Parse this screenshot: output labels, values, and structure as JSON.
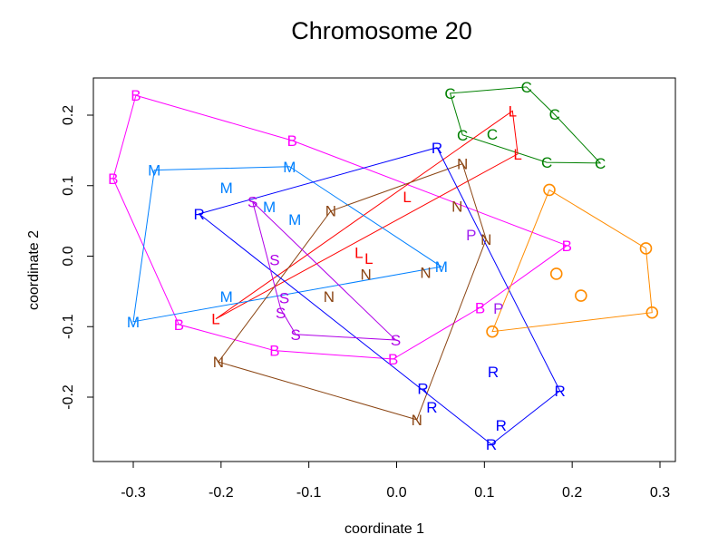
{
  "chart_data": {
    "type": "scatter",
    "title": "Chromosome 20",
    "xlabel": "coordinate 1",
    "ylabel": "coordinate 2",
    "xlim": [
      -0.345,
      0.32
    ],
    "ylim": [
      -0.29,
      0.255
    ],
    "xticks": [
      -0.3,
      -0.2,
      -0.1,
      0.0,
      0.1,
      0.2,
      0.3
    ],
    "xtick_labels": [
      "-0.3",
      "-0.2",
      "-0.1",
      "0.0",
      "0.1",
      "0.2",
      "0.3"
    ],
    "yticks": [
      -0.2,
      -0.1,
      0.0,
      0.1,
      0.2
    ],
    "ytick_labels": [
      "-0.2",
      "-0.1",
      "0.0",
      "0.1",
      "0.2"
    ],
    "grid": false,
    "point_marker": "letter",
    "hulls": true,
    "groups": [
      {
        "label": "B",
        "color": "#FF00FF",
        "hull": true,
        "points": [
          [
            -0.297,
            0.228
          ],
          [
            -0.119,
            0.164
          ],
          [
            -0.323,
            0.11
          ],
          [
            0.194,
            0.015
          ],
          [
            0.095,
            -0.073
          ],
          [
            -0.248,
            -0.097
          ],
          [
            -0.139,
            -0.134
          ],
          [
            -0.004,
            -0.146
          ]
        ],
        "hull_order": [
          0,
          1,
          3,
          4,
          7,
          6,
          5,
          2
        ]
      },
      {
        "label": "C",
        "color": "#008000",
        "hull": true,
        "points": [
          [
            0.061,
            0.231
          ],
          [
            0.148,
            0.24
          ],
          [
            0.18,
            0.201
          ],
          [
            0.232,
            0.132
          ],
          [
            0.171,
            0.133
          ],
          [
            0.075,
            0.172
          ],
          [
            0.109,
            0.173
          ]
        ],
        "hull_order": [
          0,
          1,
          2,
          3,
          4,
          5
        ]
      },
      {
        "label": "L",
        "color": "#FF0000",
        "hull": true,
        "points": [
          [
            0.132,
            0.206
          ],
          [
            0.138,
            0.145
          ],
          [
            0.012,
            0.084
          ],
          [
            -0.043,
            0.005
          ],
          [
            -0.042,
            -0.003
          ],
          [
            -0.206,
            -0.089
          ]
        ],
        "hull_order": [
          0,
          1,
          5
        ]
      },
      {
        "label": "M",
        "color": "#0080FF",
        "hull": true,
        "points": [
          [
            -0.276,
            0.122
          ],
          [
            -0.122,
            0.127
          ],
          [
            0.051,
            -0.015
          ],
          [
            -0.3,
            -0.093
          ],
          [
            -0.194,
            0.097
          ],
          [
            -0.145,
            0.07
          ],
          [
            -0.116,
            0.052
          ],
          [
            -0.194,
            -0.057
          ]
        ],
        "hull_order": [
          0,
          1,
          2,
          3
        ]
      },
      {
        "label": "N",
        "color": "#8B4513",
        "hull": true,
        "points": [
          [
            0.075,
            0.131
          ],
          [
            0.069,
            0.071
          ],
          [
            0.102,
            0.024
          ],
          [
            -0.075,
            0.064
          ],
          [
            -0.035,
            -0.017
          ],
          [
            0.033,
            -0.023
          ],
          [
            -0.077,
            -0.057
          ],
          [
            -0.203,
            -0.15
          ],
          [
            0.023,
            -0.232
          ]
        ],
        "hull_order": [
          0,
          2,
          8,
          7,
          3
        ]
      },
      {
        "label": "P",
        "color": "#A020F0",
        "hull": false,
        "points": [
          [
            0.085,
            0.03
          ],
          [
            0.116,
            -0.074
          ]
        ],
        "hull_order": []
      },
      {
        "label": "R",
        "color": "#0000FF",
        "hull": true,
        "points": [
          [
            0.046,
            0.154
          ],
          [
            -0.225,
            0.06
          ],
          [
            0.186,
            -0.191
          ],
          [
            0.108,
            -0.267
          ],
          [
            0.03,
            -0.188
          ],
          [
            0.036,
            -0.214
          ],
          [
            0.11,
            -0.164
          ],
          [
            0.119,
            -0.24
          ]
        ],
        "hull_order": [
          0,
          2,
          3,
          1
        ]
      },
      {
        "label": "S",
        "color": "#B000E8",
        "hull": true,
        "points": [
          [
            -0.164,
            0.077
          ],
          [
            -0.139,
            -0.005
          ],
          [
            -0.128,
            -0.059
          ],
          [
            -0.132,
            -0.075
          ],
          [
            -0.115,
            -0.111
          ],
          [
            -0.001,
            -0.119
          ]
        ],
        "hull_order": [
          0,
          5,
          4,
          3
        ]
      },
      {
        "label": "O",
        "color": "#FF8C00",
        "hull": true,
        "points": [
          [
            0.174,
            0.094
          ],
          [
            0.284,
            0.011
          ],
          [
            0.291,
            -0.08
          ],
          [
            0.109,
            -0.107
          ],
          [
            0.182,
            -0.025
          ],
          [
            0.21,
            -0.056
          ]
        ],
        "hull_order": [
          0,
          1,
          2,
          3
        ]
      }
    ]
  }
}
